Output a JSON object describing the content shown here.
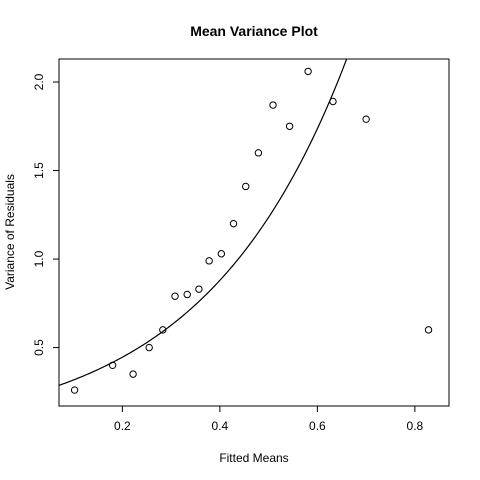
{
  "chart_data": {
    "type": "scatter",
    "title": "Mean Variance Plot",
    "xlabel": "Fitted Means",
    "ylabel": "Variance of Residuals",
    "xlim": [
      0.07,
      0.87
    ],
    "ylim": [
      0.17,
      2.13
    ],
    "x_ticks": [
      0.2,
      0.4,
      0.6,
      0.8
    ],
    "x_tick_labels": [
      "0.2",
      "0.4",
      "0.6",
      "0.8"
    ],
    "y_ticks": [
      0.5,
      1.0,
      1.5,
      2.0
    ],
    "y_tick_labels": [
      "0.5",
      "1.0",
      "1.5",
      "2.0"
    ],
    "grid": false,
    "points": [
      {
        "x": 0.102,
        "y": 0.26
      },
      {
        "x": 0.18,
        "y": 0.4
      },
      {
        "x": 0.222,
        "y": 0.35
      },
      {
        "x": 0.255,
        "y": 0.5
      },
      {
        "x": 0.283,
        "y": 0.6
      },
      {
        "x": 0.308,
        "y": 0.79
      },
      {
        "x": 0.333,
        "y": 0.8
      },
      {
        "x": 0.357,
        "y": 0.83
      },
      {
        "x": 0.378,
        "y": 0.99
      },
      {
        "x": 0.403,
        "y": 1.03
      },
      {
        "x": 0.428,
        "y": 1.2
      },
      {
        "x": 0.453,
        "y": 1.41
      },
      {
        "x": 0.479,
        "y": 1.6
      },
      {
        "x": 0.509,
        "y": 1.87
      },
      {
        "x": 0.543,
        "y": 1.75
      },
      {
        "x": 0.581,
        "y": 2.06
      },
      {
        "x": 0.632,
        "y": 1.89
      },
      {
        "x": 0.7,
        "y": 1.79
      },
      {
        "x": 0.828,
        "y": 0.6
      }
    ],
    "curve": {
      "type": "exponential",
      "a": 0.2258,
      "b": 3.4,
      "description": "y = a * exp(b * x)"
    }
  }
}
